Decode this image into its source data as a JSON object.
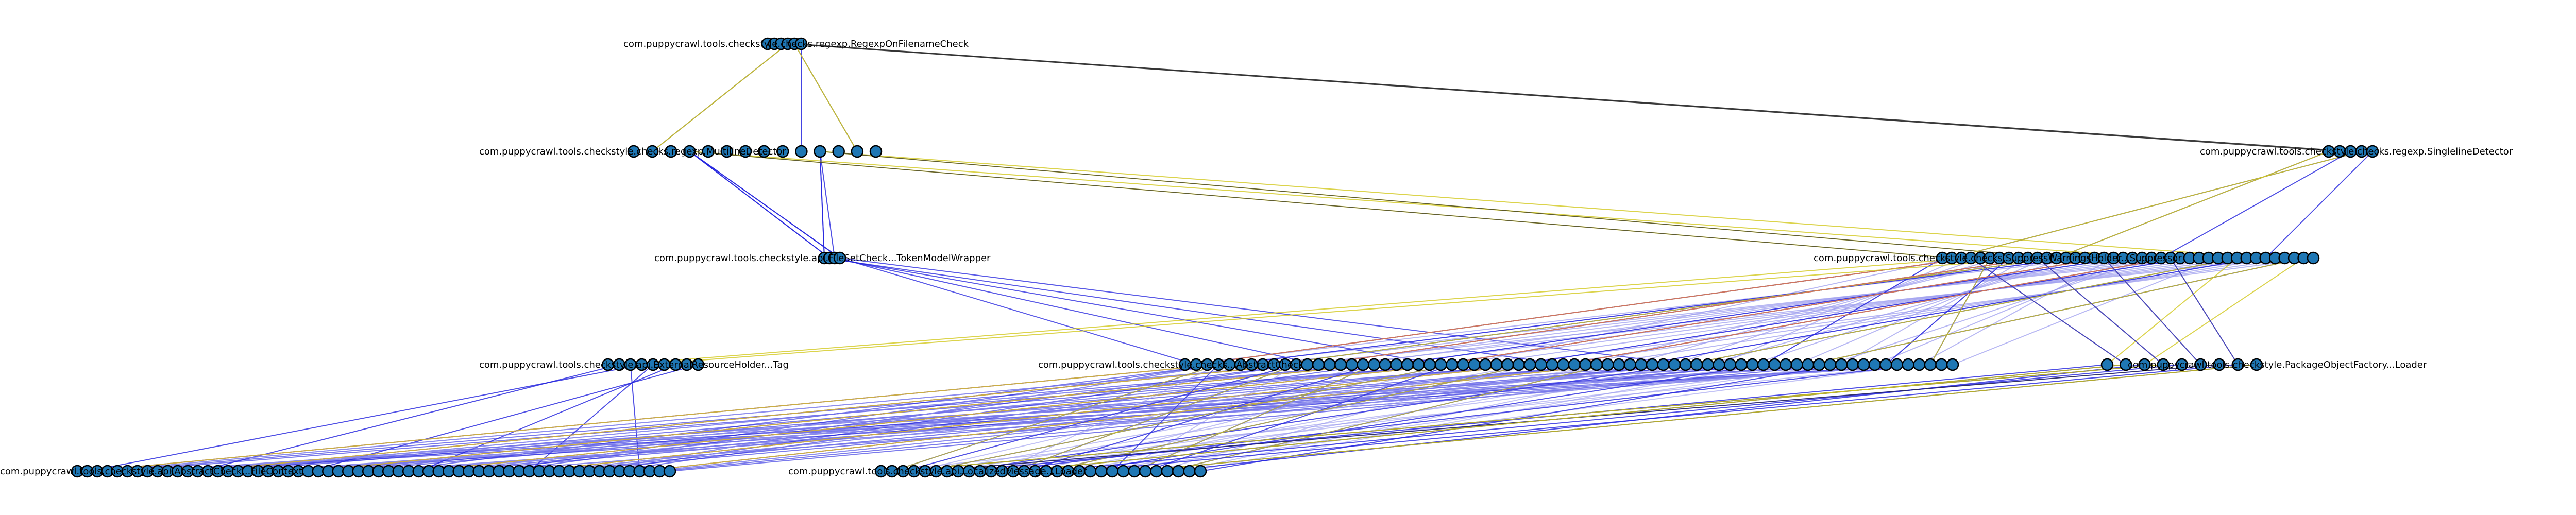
{
  "diagram": {
    "type": "layered-dependency-graph",
    "colors": {
      "node_fill": "#1f77b4",
      "node_stroke": "#000000",
      "edge_dark": "#2a2a2a",
      "edge_blue": "#2222dd",
      "edge_light_blue": "#9a9aee",
      "edge_yellow": "#d2c81e",
      "edge_red": "#d85a6a"
    },
    "layers": [
      {
        "id": "L1",
        "label": "com.puppycrawl.tools.checkstyle.checks.regexp.RegexpOnFilenameCheck"
      },
      {
        "id": "L2a",
        "label": "com.puppycrawl.tools.checkstyle.checks.regexp.MultilineDetector"
      },
      {
        "id": "L2b",
        "label": "com.puppycrawl.tools.checkstyle.checks.regexp.SinglelineDetector"
      },
      {
        "id": "L3a",
        "label": "com.puppycrawl.tools.checkstyle.api.FileSetCheck...TokenModelWrapper"
      },
      {
        "id": "L3b",
        "label": "com.puppycrawl.tools.checkstyle.checks.SuppressWarningsHolder...Suppressor"
      },
      {
        "id": "L4a",
        "label": "com.puppycrawl.tools.checkstyle.api.ExternalResourceHolder...Tag"
      },
      {
        "id": "L4b",
        "label": "com.puppycrawl.tools.checkstyle.checks...AbstractCheck"
      },
      {
        "id": "L4c",
        "label": "com.puppycrawl.tools.checkstyle.PackageObjectFactory...Loader"
      },
      {
        "id": "L5a",
        "label": "com.puppycrawl.tools.checkstyle.api.AbstractCheck...FileContext"
      },
      {
        "id": "L5b",
        "label": "com.puppycrawl.tools.checkstyle.api.LocalizedMessage...Loader"
      }
    ]
  }
}
